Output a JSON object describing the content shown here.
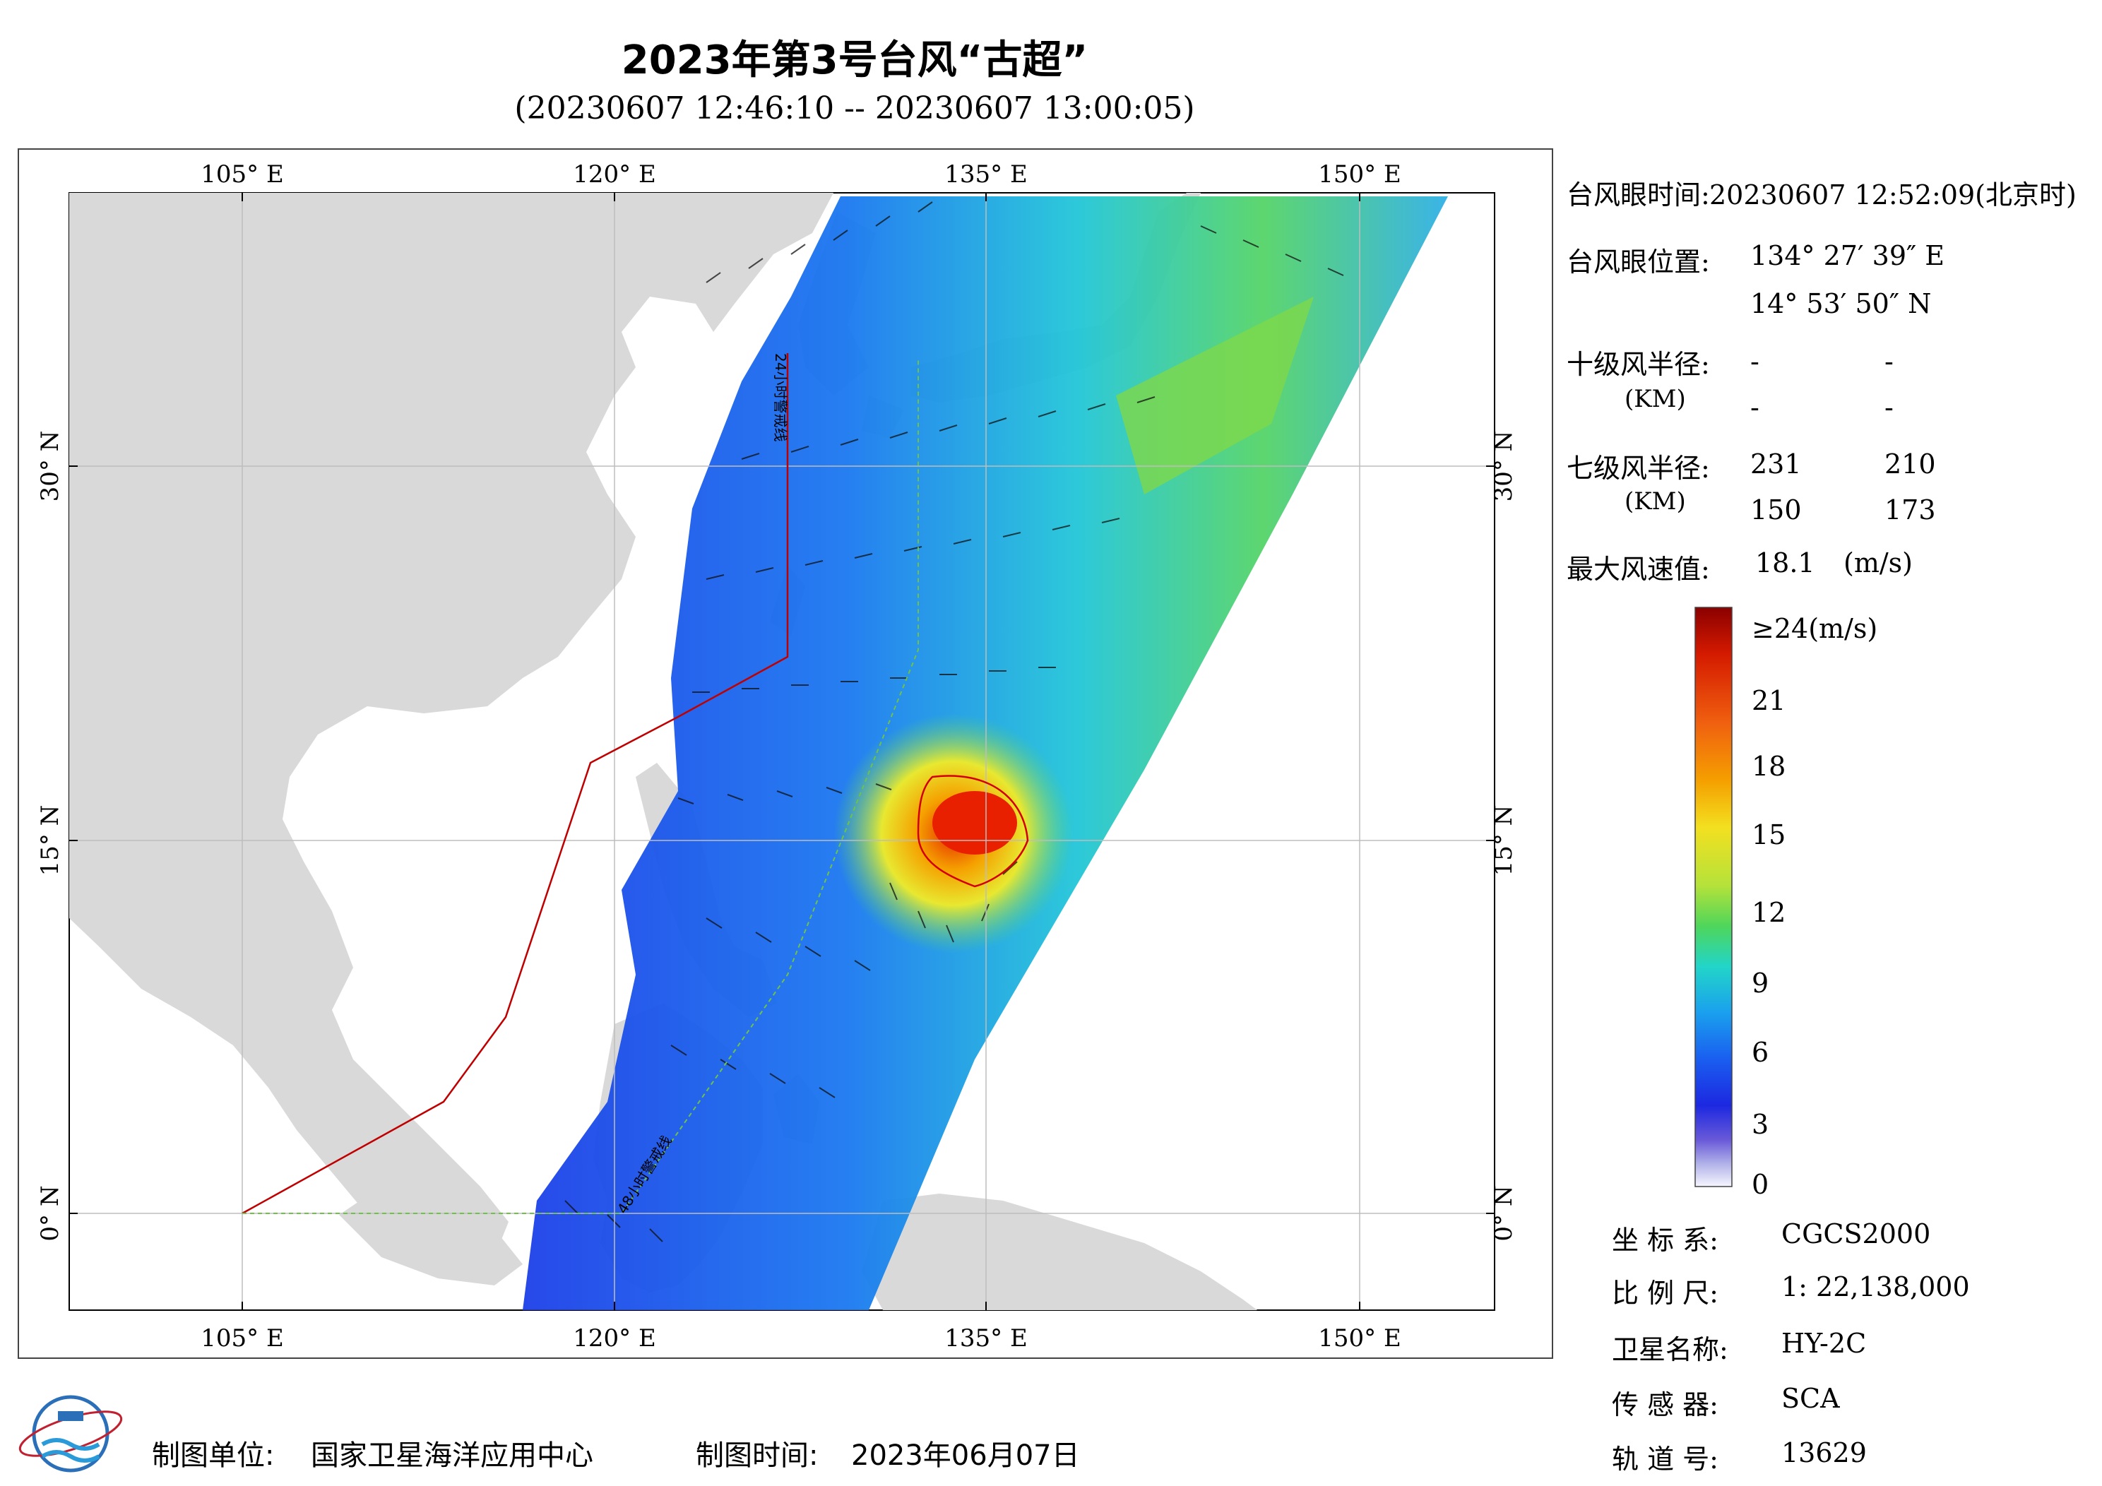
{
  "title": "2023年第3号台风“古超”",
  "subtitle": "(20230607 12:46:10 -- 20230607 13:00:05)",
  "map": {
    "lon_labels": [
      "105° E",
      "120° E",
      "135° E",
      "150° E"
    ],
    "lat_labels": [
      "30° N",
      "15° N",
      "0° N"
    ],
    "track_label_24h": "24小时警戒线",
    "track_label_48h": "48小时警戒线",
    "colors": {
      "land": "#d9d9d9",
      "ocean": "#ffffff",
      "warning_24h": "#c00000",
      "warning_48h": "#6ec24a",
      "typhoon_radius": "#d40000"
    }
  },
  "info": {
    "eye_time_label": "台风眼时间:",
    "eye_time_value": "20230607 12:52:09(北京时)",
    "eye_pos_label": "台风眼位置:",
    "eye_lon": "134° 27′ 39″ E",
    "eye_lat": "14° 53′ 50″ N",
    "r10_label": "十级风半径:",
    "r10_unit": "(KM)",
    "r10_values": [
      "-",
      "-",
      "-",
      "-"
    ],
    "r7_label": "七级风半径:",
    "r7_unit": "(KM)",
    "r7_values": [
      "231",
      "210",
      "150",
      "173"
    ],
    "max_wind_label": "最大风速值:",
    "max_wind_value": "18.1",
    "max_wind_unit": "(m/s)"
  },
  "colorbar": {
    "top_label": "≥24(m/s)",
    "ticks": [
      "21",
      "18",
      "15",
      "12",
      "9",
      "6",
      "3",
      "0"
    ],
    "colors": [
      "#8b0000",
      "#d41a00",
      "#f06010",
      "#f5a000",
      "#f3e020",
      "#b5e23a",
      "#4fd65a",
      "#22d5c8",
      "#1aa0ee",
      "#1a5ef0",
      "#1c28e0",
      "#3a2bd0",
      "#9c9ce0",
      "#f2f2ff"
    ]
  },
  "meta": {
    "crs_label": "坐 标 系:",
    "crs_value": "CGCS2000",
    "scale_label": "比 例 尺:",
    "scale_value": "1: 22,138,000",
    "sat_label": "卫星名称:",
    "sat_value": "HY-2C",
    "sensor_label": "传 感 器:",
    "sensor_value": "SCA",
    "orbit_label": "轨 道 号:",
    "orbit_value": "13629"
  },
  "footer": {
    "org_label": "制图单位:",
    "org_value": "国家卫星海洋应用中心",
    "date_label": "制图时间:",
    "date_value": "2023年06月07日"
  }
}
